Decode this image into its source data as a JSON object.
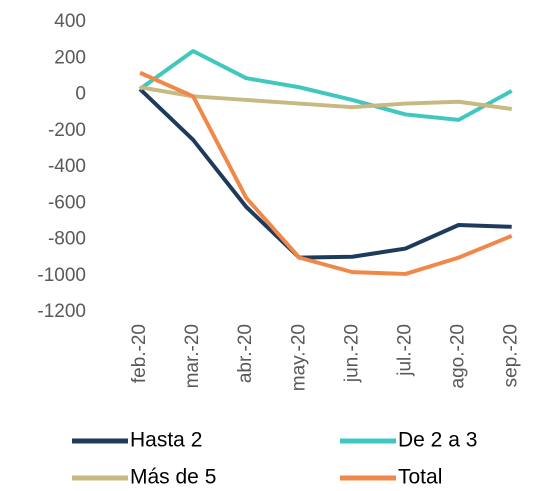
{
  "chart_data": {
    "type": "line",
    "categories": [
      "feb.-20",
      "mar.-20",
      "abr.-20",
      "may.-20",
      "jun.-20",
      "jul.-20",
      "ago.-20",
      "sep.-20"
    ],
    "series": [
      {
        "name": "Hasta 2",
        "color": "#1f3b5c",
        "values": [
          30,
          -250,
          -620,
          -900,
          -895,
          -850,
          -720,
          -730
        ]
      },
      {
        "name": "De 2 a 3",
        "color": "#40c8c0",
        "values": [
          30,
          240,
          90,
          40,
          -30,
          -110,
          -140,
          20
        ]
      },
      {
        "name": "Más de 5",
        "color": "#c8b882",
        "values": [
          40,
          -10,
          -30,
          -50,
          -70,
          -50,
          -40,
          -80
        ]
      },
      {
        "name": "Total",
        "color": "#f0884a",
        "values": [
          120,
          -10,
          -570,
          -900,
          -980,
          -990,
          -900,
          -780
        ]
      }
    ],
    "ylim": [
      -1200,
      400
    ],
    "yticks": [
      -1200,
      -1000,
      -800,
      -600,
      -400,
      -200,
      0,
      200,
      400
    ],
    "grid": false,
    "legend": "bottom"
  }
}
